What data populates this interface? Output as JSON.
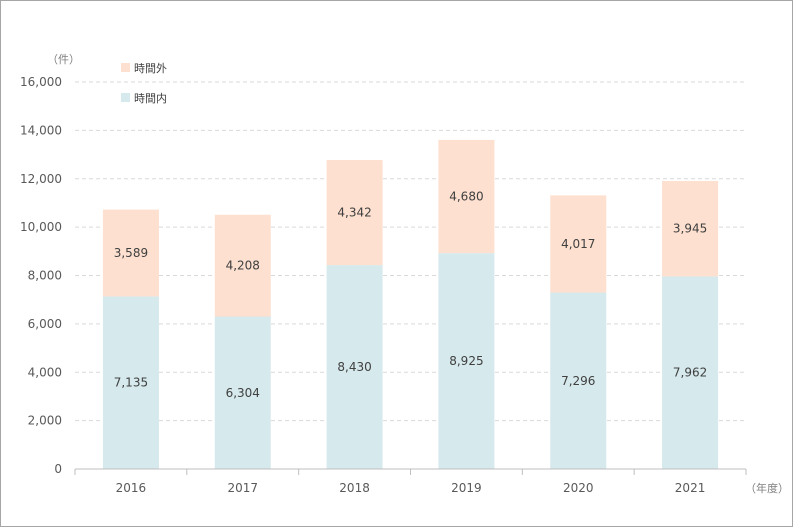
{
  "chart_data": {
    "type": "bar",
    "stacked": true,
    "categories": [
      "2016",
      "2017",
      "2018",
      "2019",
      "2020",
      "2021"
    ],
    "series": [
      {
        "name": "時間内",
        "values": [
          7135,
          6304,
          8430,
          8925,
          7296,
          7962
        ],
        "labels": [
          "7,135",
          "6,304",
          "8,430",
          "8,925",
          "7,296",
          "7,962"
        ],
        "color": "#d6e9ec"
      },
      {
        "name": "時間外",
        "values": [
          3589,
          4208,
          4342,
          4680,
          4017,
          3945
        ],
        "labels": [
          "3,589",
          "4,208",
          "4,342",
          "4,680",
          "4,017",
          "3,945"
        ],
        "color": "#fde0cf"
      }
    ],
    "y_unit": "（件）",
    "x_unit": "（年度）",
    "ylim": [
      0,
      16000
    ],
    "yticks": [
      0,
      2000,
      4000,
      6000,
      8000,
      10000,
      12000,
      14000,
      16000
    ],
    "ytick_labels": [
      "0",
      "2,000",
      "4,000",
      "6,000",
      "8,000",
      "10,000",
      "12,000",
      "14,000",
      "16,000"
    ],
    "grid": true,
    "legend_position": "top-left"
  }
}
